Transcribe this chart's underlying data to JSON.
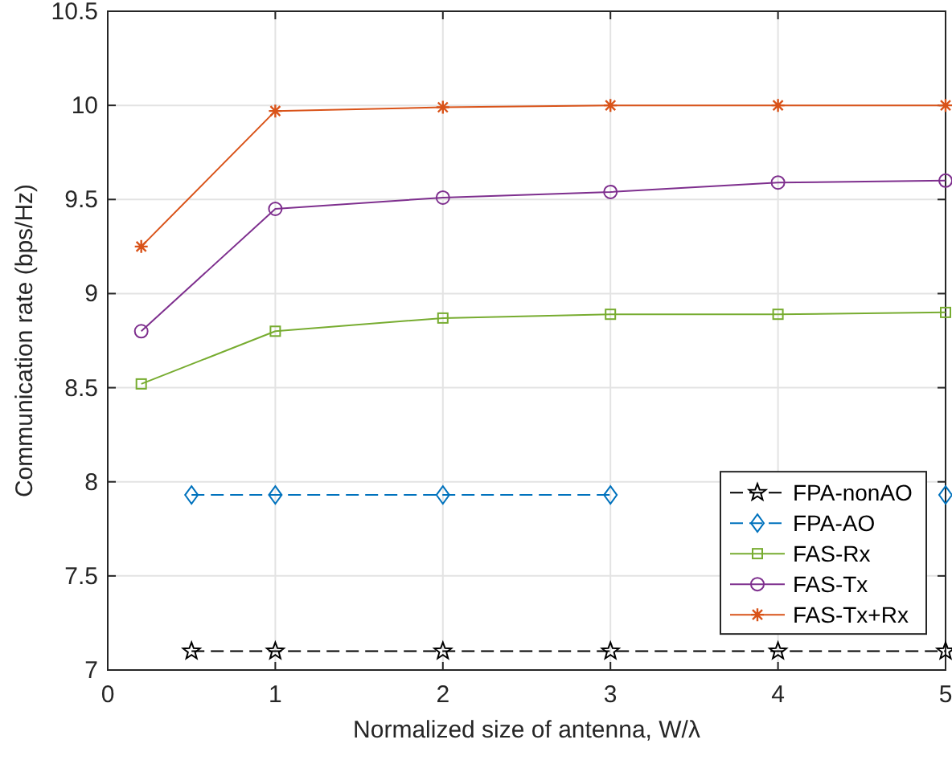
{
  "chart_data": {
    "type": "line",
    "xlabel": "Normalized size of antenna, W/λ",
    "ylabel": "Communication rate (bps/Hz)",
    "xlim": [
      0,
      5
    ],
    "xticks": [
      0,
      1,
      2,
      3,
      4,
      5
    ],
    "ylim": [
      7,
      10.5
    ],
    "yticks": [
      7,
      7.5,
      8,
      8.5,
      9,
      9.5,
      10,
      10.5
    ],
    "grid": true,
    "legend": "right",
    "series": [
      {
        "name": "FPA-nonAO",
        "color": "#000000",
        "marker": "star",
        "line_style": "dashed",
        "x": [
          0.5,
          1,
          2,
          3,
          4,
          5
        ],
        "values": [
          7.1,
          7.1,
          7.1,
          7.1,
          7.1,
          7.1
        ]
      },
      {
        "name": "FPA-AO",
        "color": "#0072bd",
        "marker": "diamond",
        "line_style": "dashed",
        "x": [
          0.5,
          1,
          2,
          3,
          4,
          5
        ],
        "values": [
          7.93,
          7.93,
          7.93,
          7.93,
          null,
          7.93
        ]
      },
      {
        "name": "FAS-Rx",
        "color": "#77ac30",
        "marker": "square",
        "line_style": "solid",
        "x": [
          0.2,
          1,
          2,
          3,
          4,
          5
        ],
        "values": [
          8.52,
          8.8,
          8.87,
          8.89,
          8.89,
          8.9
        ]
      },
      {
        "name": "FAS-Tx",
        "color": "#7e2f8e",
        "marker": "circle",
        "line_style": "solid",
        "x": [
          0.2,
          1,
          2,
          3,
          4,
          5
        ],
        "values": [
          8.8,
          9.45,
          9.51,
          9.54,
          9.59,
          9.6
        ]
      },
      {
        "name": "FAS-Tx+Rx",
        "color": "#d95319",
        "marker": "cross",
        "line_style": "solid",
        "x": [
          0.2,
          1,
          2,
          3,
          4,
          5
        ],
        "values": [
          9.25,
          9.97,
          9.99,
          10.0,
          10.0,
          10.0
        ]
      }
    ]
  }
}
